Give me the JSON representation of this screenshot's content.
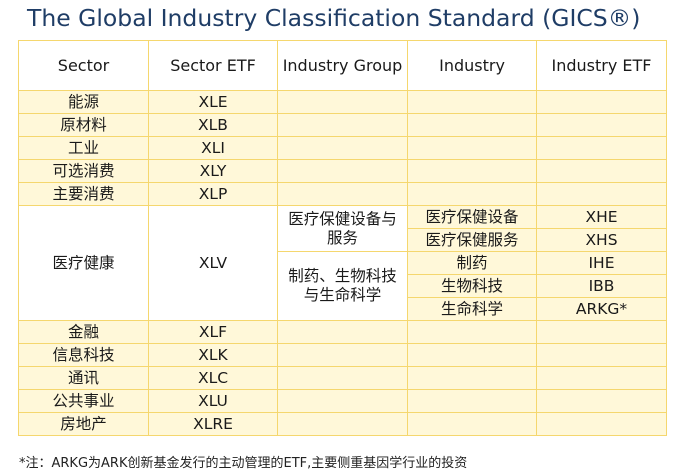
{
  "title": "The Global Industry Classification Standard (GICS®)",
  "headers": [
    "Sector",
    "Sector ETF",
    "Industry Group",
    "Industry",
    "Industry ETF"
  ],
  "rows_before": [
    {
      "sector": "能源",
      "etf": "XLE"
    },
    {
      "sector": "原材料",
      "etf": "XLB"
    },
    {
      "sector": "工业",
      "etf": "XLI"
    },
    {
      "sector": "可选消费",
      "etf": "XLY"
    },
    {
      "sector": "主要消费",
      "etf": "XLP"
    }
  ],
  "healthcare": {
    "sector": "医疗健康",
    "etf": "XLV",
    "groups": [
      {
        "name": "医疗保健设备与服务",
        "industries": [
          {
            "name": "医疗保健设备",
            "etf": "XHE"
          },
          {
            "name": "医疗保健服务",
            "etf": "XHS"
          }
        ]
      },
      {
        "name": "制药、生物科技与生命科学",
        "industries": [
          {
            "name": "制药",
            "etf": "IHE"
          },
          {
            "name": "生物科技",
            "etf": "IBB"
          },
          {
            "name": "生命科学",
            "etf": "ARKG*"
          }
        ]
      }
    ]
  },
  "rows_after": [
    {
      "sector": "金融",
      "etf": "XLF"
    },
    {
      "sector": "信息科技",
      "etf": "XLK"
    },
    {
      "sector": "通讯",
      "etf": "XLC"
    },
    {
      "sector": "公共事业",
      "etf": "XLU"
    },
    {
      "sector": "房地产",
      "etf": "XLRE"
    }
  ],
  "note": "*注：ARKG为ARK创新基金发行的主动管理的ETF,主要侧重基因学行业的投资"
}
